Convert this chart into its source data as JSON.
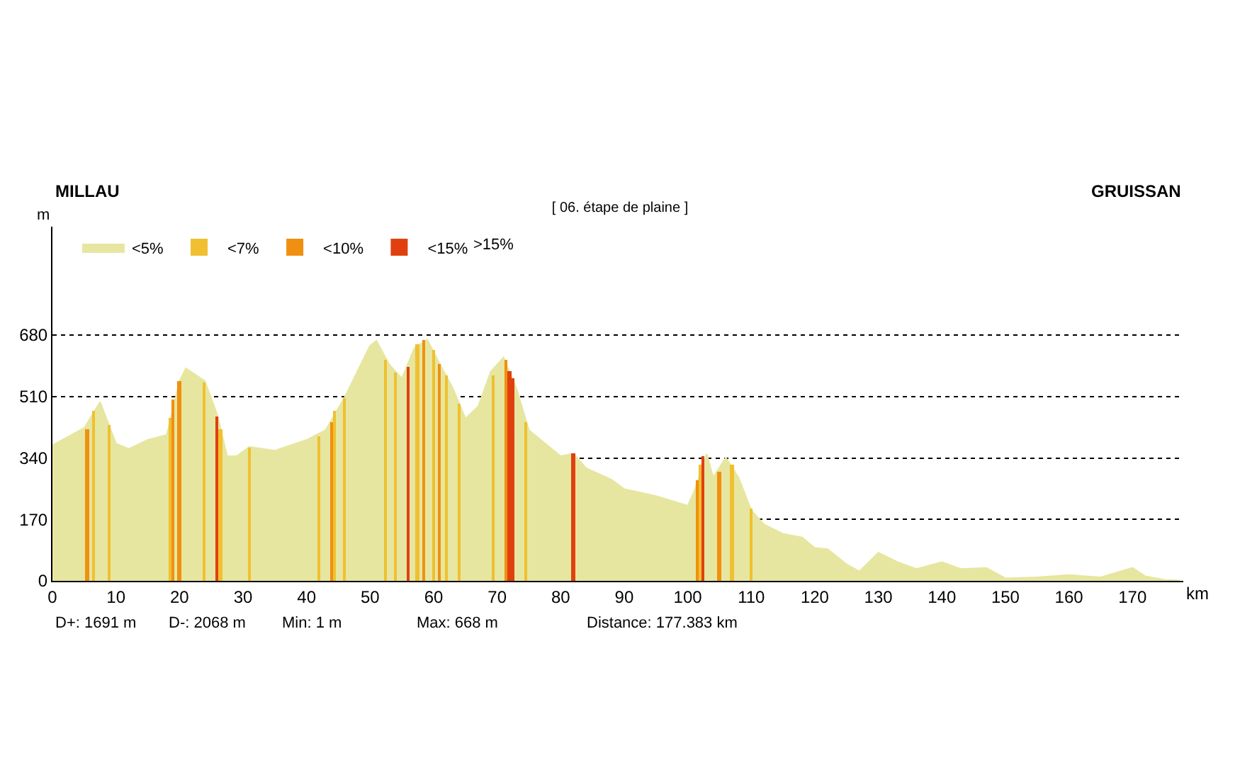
{
  "chart_data": {
    "type": "area",
    "title": "[ 06. étape de plaine ]",
    "xlabel": "km",
    "ylabel": "m",
    "annotations": [
      "MILLAU",
      "GRUISSAN",
      "D+: 1691 m",
      "D-: 2068 m",
      "Min: 1 m",
      "Max: 668 m",
      "Distance: 177.383 km",
      ">15%"
    ],
    "xlim": [
      0,
      178
    ],
    "xticks": [
      0,
      10,
      20,
      30,
      40,
      50,
      60,
      70,
      80,
      90,
      100,
      110,
      120,
      130,
      140,
      150,
      160,
      170
    ],
    "ylim": [
      0,
      980
    ],
    "yticks": [
      0,
      170,
      340,
      510,
      680
    ],
    "grid": "y",
    "legend": "top left",
    "stacked": false,
    "series": [
      {
        "name": "<5%",
        "color": "#e6e6a0",
        "x": [
          0,
          5,
          7.5,
          10,
          12,
          15,
          18,
          20,
          21,
          24,
          26,
          27.5,
          29,
          31,
          35,
          40,
          43,
          46,
          50,
          51,
          53,
          55,
          57,
          59,
          61,
          63,
          65,
          67,
          69,
          71,
          73,
          75,
          80,
          82,
          84,
          88,
          90,
          95,
          100,
          101,
          103,
          104,
          106,
          108,
          110,
          112,
          115,
          118,
          120,
          122,
          125,
          127,
          130,
          133,
          136,
          140,
          143,
          147,
          150,
          155,
          160,
          165,
          170,
          172,
          175,
          177.4
        ],
        "values": [
          375,
          423,
          495,
          380,
          365,
          390,
          404,
          553,
          588,
          553,
          456,
          345,
          345,
          371,
          360,
          390,
          417,
          508,
          651,
          664,
          599,
          560,
          645,
          667,
          599,
          534,
          449,
          482,
          579,
          618,
          534,
          417,
          345,
          352,
          312,
          280,
          254,
          235,
          208,
          247,
          351,
          286,
          341,
          286,
          195,
          156,
          130,
          120,
          91,
          88,
          46,
          26,
          78,
          52,
          33,
          52,
          33,
          36,
          7,
          10,
          16,
          10,
          36,
          13,
          3,
          1
        ]
      },
      {
        "name": "<7%",
        "type": "bar",
        "color": "#f0c030",
        "x": [
          6.5,
          9,
          18.5,
          24,
          26.5,
          31,
          42,
          44.5,
          46,
          52.5,
          54,
          57.5,
          60,
          62,
          64,
          69.5,
          74.5,
          102,
          107,
          110
        ],
        "values": [
          470,
          430,
          450,
          550,
          420,
          370,
          400,
          470,
          505,
          610,
          575,
          655,
          640,
          570,
          490,
          570,
          440,
          320,
          320,
          200
        ]
      },
      {
        "name": "<10%",
        "type": "bar",
        "color": "#f09010",
        "x": [
          5.5,
          19,
          20,
          44,
          58.5,
          61,
          71.5,
          101.5,
          105
        ],
        "values": [
          420,
          500,
          553,
          440,
          665,
          599,
          610,
          280,
          300
        ]
      },
      {
        "name": "<15%",
        "type": "bar",
        "color": "#e04010",
        "x": [
          26,
          56,
          72,
          72.5,
          82,
          102.5
        ],
        "values": [
          456,
          590,
          580,
          560,
          352,
          345
        ]
      }
    ]
  }
}
